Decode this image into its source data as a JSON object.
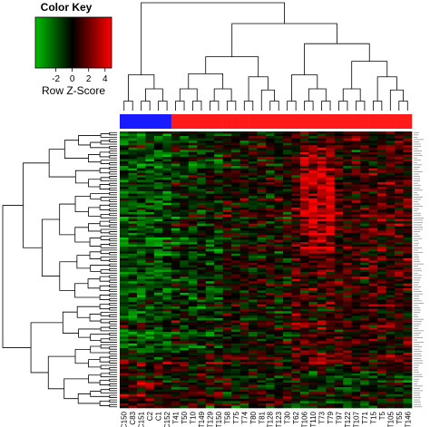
{
  "chart_data": {
    "type": "heatmap",
    "color_key": {
      "title": "Color Key",
      "label": "Row Z-Score",
      "ticks": [
        -2,
        0,
        2,
        4
      ],
      "range": [
        -4.5,
        4.8
      ],
      "colors": {
        "low": "#00c000",
        "mid": "#000000",
        "high": "#ff0000"
      }
    },
    "columns": [
      "C150",
      "C83",
      "C151",
      "C2",
      "C1",
      "C152",
      "T41",
      "T50",
      "T10",
      "T149",
      "T129",
      "T150",
      "T58",
      "T75",
      "T74",
      "T80",
      "T81",
      "T128",
      "T123",
      "T30",
      "T62",
      "T106",
      "T110",
      "T73",
      "T79",
      "T97",
      "T122",
      "T107",
      "T71",
      "T15",
      "T5",
      "T105",
      "T55",
      "T146"
    ],
    "column_groups": [
      "control",
      "control",
      "control",
      "control",
      "control",
      "control",
      "tumor",
      "tumor",
      "tumor",
      "tumor",
      "tumor",
      "tumor",
      "tumor",
      "tumor",
      "tumor",
      "tumor",
      "tumor",
      "tumor",
      "tumor",
      "tumor",
      "tumor",
      "tumor",
      "tumor",
      "tumor",
      "tumor",
      "tumor",
      "tumor",
      "tumor",
      "tumor",
      "tumor",
      "tumor",
      "tumor",
      "tumor",
      "tumor"
    ],
    "group_colors": {
      "control": "#1a1aff",
      "tumor": "#ff1a1a"
    },
    "n_rows": 120,
    "row_labels_shown": false,
    "colorscale": [
      "#00c000",
      "#000000",
      "#ff0000"
    ]
  }
}
